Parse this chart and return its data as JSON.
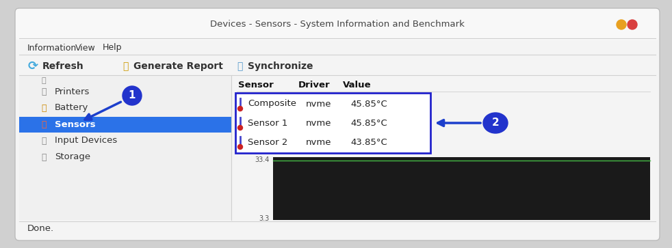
{
  "title": "Devices - Sensors - System Information and Benchmark",
  "outer_bg": "#d0d0d0",
  "window_bg": "#f4f4f4",
  "titlebar_bg": "#fafafa",
  "menu_items": [
    "Information",
    "View",
    "Help"
  ],
  "toolbar_items": [
    "Refresh",
    "Generate Report",
    "Synchronize"
  ],
  "sidebar_items": [
    "Printers",
    "Battery",
    "Sensors",
    "Input Devices",
    "Storage"
  ],
  "selected_item": "Sensors",
  "selected_bg": "#2b72e8",
  "table_headers": [
    "Sensor",
    "Driver",
    "Value"
  ],
  "table_rows": [
    [
      "Composite",
      "nvme",
      "45.85°C"
    ],
    [
      "Sensor 1",
      "nvme",
      "45.85°C"
    ],
    [
      "Sensor 2",
      "nvme",
      "43.85°C"
    ]
  ],
  "table_border_color": "#2222cc",
  "annotation_color": "#1c3fcc",
  "annotation_circle_color": "#2233cc",
  "status_bar_text": "Done.",
  "window_border_color": "#bbbbbb",
  "dot_yellow": "#e8a020",
  "dot_red": "#d94040",
  "chart_area_color": "#1a1a1a",
  "chart_line_color": "#44bb44",
  "sidebar_bg": "#f0f0f0",
  "content_bg": "#ffffff"
}
